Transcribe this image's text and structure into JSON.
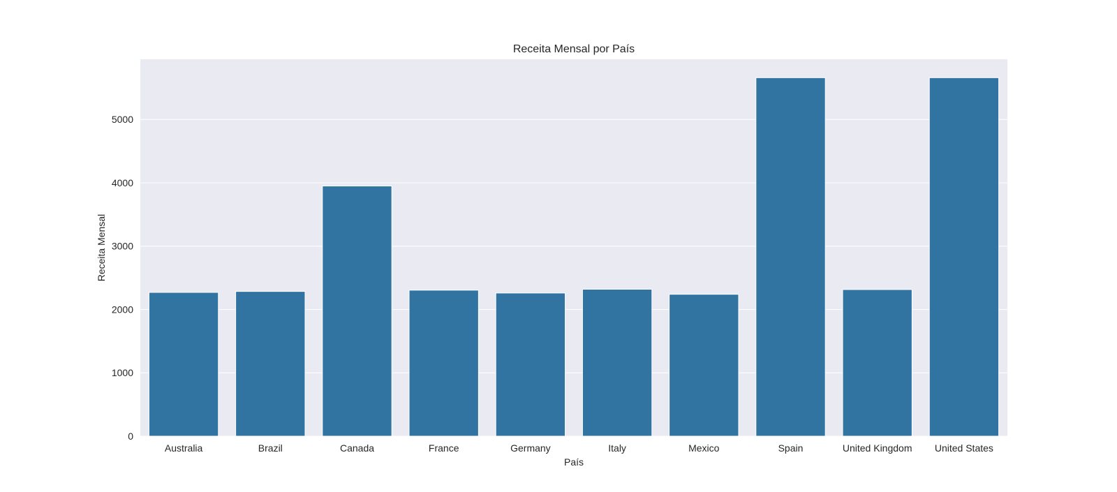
{
  "chart_data": {
    "type": "bar",
    "title": "Receita Mensal por País",
    "xlabel": "País",
    "ylabel": "Receita Mensal",
    "categories": [
      "Australia",
      "Brazil",
      "Canada",
      "France",
      "Germany",
      "Italy",
      "Mexico",
      "Spain",
      "United Kingdom",
      "United States"
    ],
    "values": [
      2270,
      2285,
      3950,
      2305,
      2260,
      2320,
      2240,
      5660,
      2315,
      5660
    ],
    "ylim": [
      0,
      5950
    ],
    "yticks": [
      0,
      1000,
      2000,
      3000,
      4000,
      5000
    ],
    "grid": true,
    "legend": "none",
    "colors": {
      "bar": "#3274a1",
      "plot_background": "#eaeaf2",
      "grid": "#ffffff",
      "text": "#262626"
    }
  }
}
